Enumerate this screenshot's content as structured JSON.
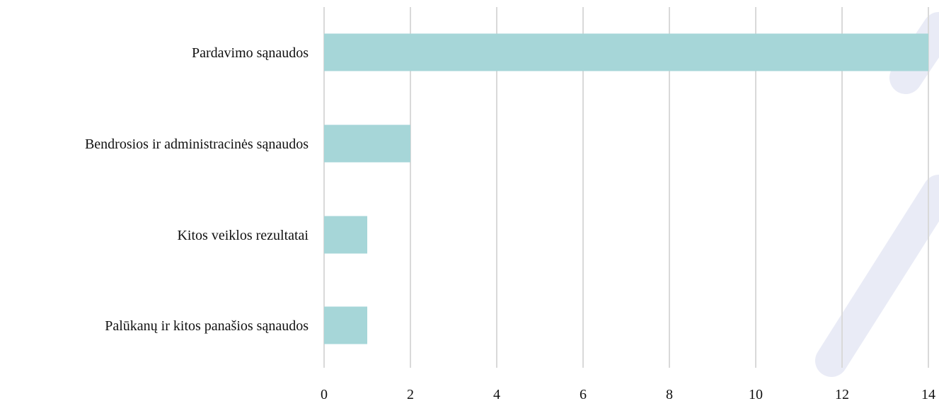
{
  "chart_data": {
    "type": "bar",
    "orientation": "horizontal",
    "categories": [
      "Pardavimo sąnaudos",
      "Bendrosios ir administracinės sąnaudos",
      "Kitos veiklos rezultatai",
      "Palūkanų ir kitos panašios sąnaudos"
    ],
    "values": [
      14,
      2,
      1,
      1
    ],
    "title": "",
    "xlabel": "",
    "ylabel": "",
    "xlim": [
      0,
      14
    ],
    "x_ticks": [
      "0",
      "2",
      "4",
      "6",
      "8",
      "10",
      "12",
      "14"
    ],
    "grid": true,
    "legend": "none",
    "bar_color": "#a6d6d8",
    "grid_color": "#d9d9d9",
    "decor_color": "#e9ebf6"
  }
}
